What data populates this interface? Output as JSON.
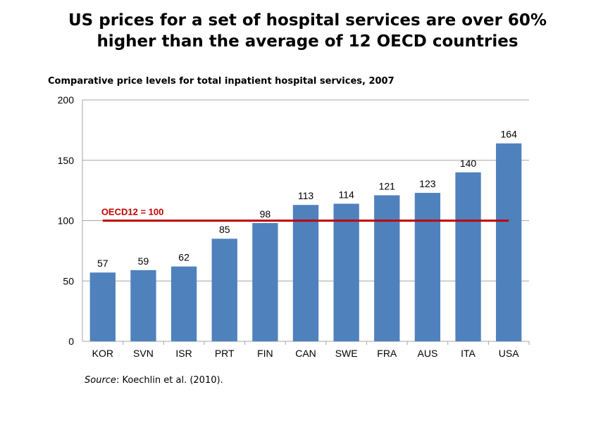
{
  "headline": {
    "line1": "US prices for a set of hospital services are over 60%",
    "line2": "higher than the average of 12 OECD countries"
  },
  "source": {
    "label": "Source",
    "separator": ": ",
    "text": "Koechlin et al. (2010)."
  },
  "colors": {
    "bar": "#4f81bd",
    "reference_line": "#c00000",
    "gridline": "#a6a6a6"
  },
  "chart_data": {
    "type": "bar",
    "title": "Comparative price levels for total inpatient hospital services, 2007",
    "categories": [
      "KOR",
      "SVN",
      "ISR",
      "PRT",
      "FIN",
      "CAN",
      "SWE",
      "FRA",
      "AUS",
      "ITA",
      "USA"
    ],
    "values": [
      57,
      59,
      62,
      85,
      98,
      113,
      114,
      121,
      123,
      140,
      164
    ],
    "data_labels": [
      "57",
      "59",
      "62",
      "85",
      "98",
      "113",
      "114",
      "121",
      "123",
      "140",
      "164"
    ],
    "ylim": [
      0,
      200
    ],
    "yticks": [
      0,
      50,
      100,
      150,
      200
    ],
    "ytick_labels": [
      "0",
      "50",
      "100",
      "150",
      "200"
    ],
    "grid": true,
    "legend": "none",
    "reference_line": {
      "value": 100,
      "label": "OECD12 = 100"
    }
  }
}
